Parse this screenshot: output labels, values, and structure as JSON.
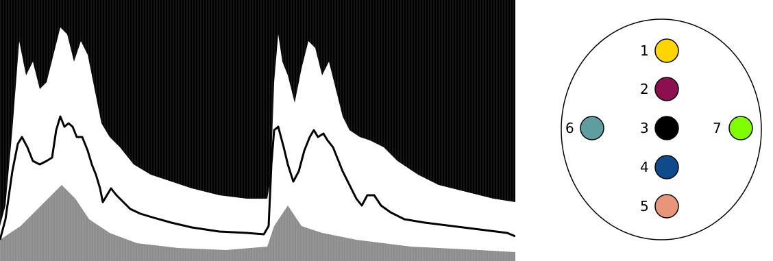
{
  "panel_left": {
    "background_color": "#000000",
    "envelope_color": "#000000",
    "texture_color": "#ffffff"
  },
  "electrodes": [
    {
      "label": "1",
      "color": "#FFD500"
    },
    {
      "label": "2",
      "color": "#8C0F4F"
    },
    {
      "label": "3",
      "color": "#000000"
    },
    {
      "label": "4",
      "color": "#0F4A8C"
    },
    {
      "label": "5",
      "color": "#E8967A"
    },
    {
      "label": "6",
      "color": "#5F9EA0"
    },
    {
      "label": "7",
      "color": "#7FFF00"
    }
  ]
}
